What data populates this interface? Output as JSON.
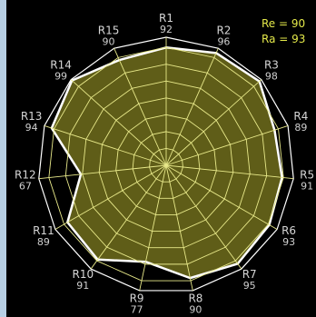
{
  "chart_data": {
    "type": "radar",
    "title": "",
    "annotations": {
      "re": "Re = 90",
      "ra": "Ra = 93"
    },
    "categories": [
      "R1",
      "R2",
      "R3",
      "R4",
      "R5",
      "R6",
      "R7",
      "R8",
      "R9",
      "R10",
      "R11",
      "R12",
      "R13",
      "R14",
      "R15"
    ],
    "value_labels": [
      "92",
      "96",
      "98",
      "89",
      "91",
      "93",
      "95",
      "90",
      "77",
      "91",
      "89",
      "67",
      "94",
      "99",
      "90"
    ],
    "values": [
      92,
      96,
      98,
      89,
      91,
      93,
      95,
      90,
      77,
      91,
      89,
      67,
      94,
      99,
      90
    ],
    "rlim": [
      0,
      100
    ],
    "rings": 7,
    "grid": true,
    "colors": {
      "fill": "#5f5d18",
      "outline": "#ffffff",
      "grid": "#e8e98a",
      "annotation": "#e3e84a"
    }
  }
}
